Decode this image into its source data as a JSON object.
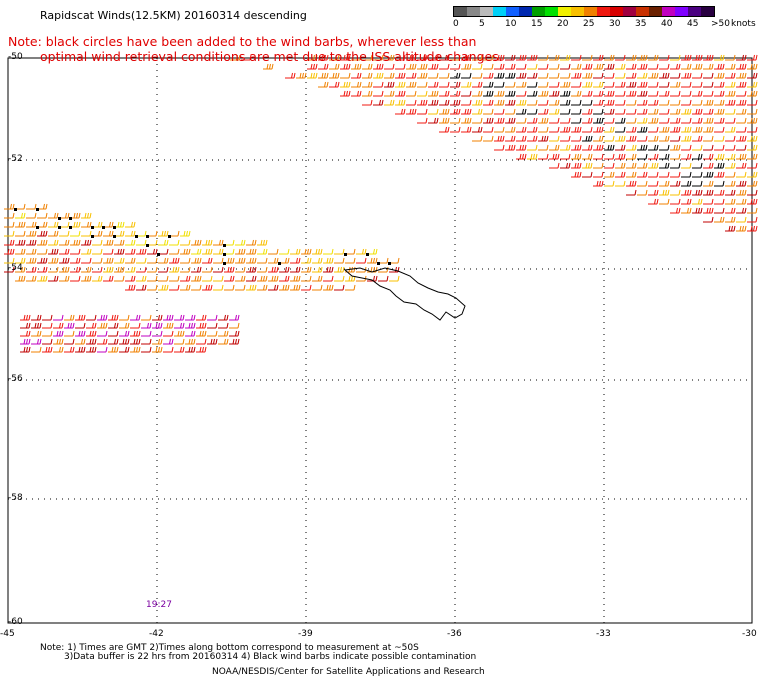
{
  "header": {
    "title": "Rapidscat Winds(12.5KM) 20160314 descending",
    "note_line1": "Note: black circles have been added to the wind barbs, wherever less than",
    "note_line2": "optimal wind retrieval conditions are met due to the ISS altitude changes."
  },
  "legend": {
    "unit": "knots",
    "colors": [
      "#555555",
      "#888888",
      "#bbbbbb",
      "#00d0f8",
      "#1060ff",
      "#0028b0",
      "#00a000",
      "#00e000",
      "#f0f000",
      "#f8c000",
      "#f08000",
      "#f01810",
      "#d80000",
      "#a00040",
      "#c83000",
      "#6a2000",
      "#c000c0",
      "#8000ff",
      "#4a0080",
      "#280040"
    ],
    "labels": [
      "0",
      "5",
      "10",
      "15",
      "20",
      "25",
      "30",
      "35",
      "40",
      "45",
      ">50"
    ]
  },
  "map": {
    "lat_labels": [
      "-50",
      "-52",
      "-54",
      "-56",
      "-58",
      "-60"
    ],
    "lon_labels": [
      "-45",
      "-42",
      "-39",
      "-36",
      "-33",
      "-30"
    ],
    "time_label": "19:27",
    "barb_colors": {
      "light": "#f0e000",
      "yellow": "#f8c000",
      "orange": "#f08000",
      "red": "#f01810",
      "dark": "#c00000",
      "brown": "#6a2000",
      "magenta": "#c000c0",
      "black": "#000000"
    },
    "coast_color": "#000000"
  },
  "footer": {
    "line1": "Note: 1) Times are GMT 2)Times along bottom correspond to measurement at ~50S",
    "line2": "3)Data buffer is 22 hrs from 20160314 4) Black wind barbs indicate possible contamination",
    "line3": "NOAA/NESDIS/Center for Satellite Applications and Research"
  }
}
